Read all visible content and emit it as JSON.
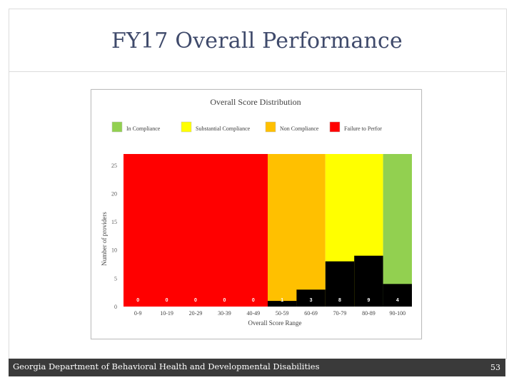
{
  "slide": {
    "title": "FY17 Overall Performance",
    "footer": "Georgia Department of Behavioral Health and Developmental Disabilities",
    "page_number": "53"
  },
  "chart_data": {
    "type": "bar",
    "title": "Overall Score Distribution",
    "xlabel": "Overall Score Range",
    "ylabel": "Number of providers",
    "categories": [
      "0-9",
      "10-19",
      "20-29",
      "30-39",
      "40-49",
      "50-59",
      "60-69",
      "70-79",
      "80-89",
      "90-100"
    ],
    "values": [
      0,
      0,
      0,
      0,
      0,
      1,
      3,
      8,
      9,
      4
    ],
    "data_labels": [
      "0",
      "0",
      "0",
      "0",
      "0",
      "1",
      "3",
      "8",
      "9",
      "4"
    ],
    "ylim": [
      0,
      27
    ],
    "yticks": [
      0,
      5,
      10,
      15,
      20,
      25
    ],
    "bar_color": "#000000",
    "label_color": "#ffffff",
    "background_bands": [
      {
        "name": "Failure to Perform",
        "from": "0-9",
        "to": "40-49",
        "color": "#ff0000"
      },
      {
        "name": "Non Compliance",
        "from": "50-59",
        "to": "60-69",
        "color": "#ffc000"
      },
      {
        "name": "Substantial Compliance",
        "from": "70-79",
        "to": "80-89",
        "color": "#ffff00"
      },
      {
        "name": "In Compliance",
        "from": "90-100",
        "to": "90-100",
        "color": "#92d050"
      }
    ],
    "legend": {
      "position": "top",
      "items": [
        {
          "label": "In Compliance",
          "color": "#92d050"
        },
        {
          "label": "Substantial Compliance",
          "color": "#ffff00"
        },
        {
          "label": "Non Compliance",
          "color": "#ffc000"
        },
        {
          "label": "Failure to Perfor",
          "color": "#ff0000"
        }
      ]
    },
    "grid": false
  }
}
